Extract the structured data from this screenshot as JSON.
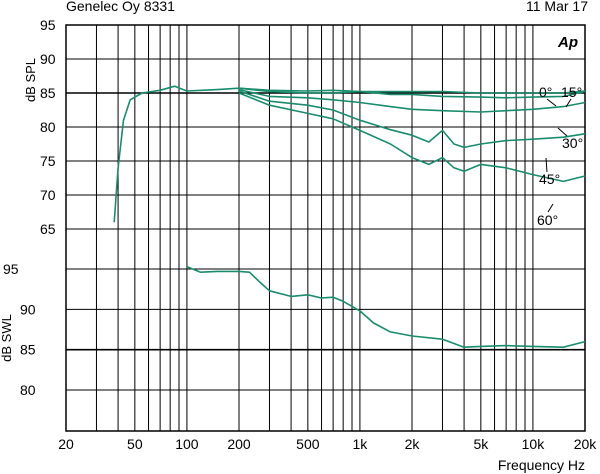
{
  "header": {
    "left": "Genelec Oy 8331",
    "right": "11 Mar 17",
    "logo": "Ap"
  },
  "colors": {
    "curve": "#1a8c6e",
    "grid": "#000000",
    "background": "#ffffff"
  },
  "chart_data": [
    {
      "type": "line",
      "title": "",
      "xlabel": "Frequency Hz",
      "ylabel": "dB SPL",
      "xscale": "log",
      "xlim": [
        20,
        20000
      ],
      "ylim": [
        65,
        95
      ],
      "yticks": [
        95,
        90,
        85,
        80,
        75,
        70,
        65
      ],
      "xticks": [
        20,
        50,
        100,
        200,
        500,
        1000,
        2000,
        5000,
        10000,
        20000
      ],
      "xtick_labels": [
        "20",
        "50",
        "100",
        "200",
        "500",
        "1k",
        "2k",
        "5k",
        "10k",
        "20k"
      ],
      "grid": true,
      "series": [
        {
          "name": "0°",
          "x": [
            38,
            40,
            43,
            47,
            55,
            70,
            85,
            100,
            150,
            200,
            300,
            500,
            700,
            1000,
            1500,
            2000,
            3000,
            5000,
            7000,
            10000,
            15000,
            20000
          ],
          "y": [
            66,
            74,
            81,
            84,
            85,
            85.4,
            86,
            85.3,
            85.5,
            85.7,
            85.4,
            85.3,
            85.4,
            85.2,
            85.2,
            85.2,
            85.2,
            85.0,
            85.0,
            85.0,
            85.0,
            85.3
          ]
        },
        {
          "name": "15°",
          "x": [
            200,
            300,
            500,
            700,
            1000,
            1500,
            2000,
            3000,
            5000,
            7000,
            10000,
            15000,
            20000
          ],
          "y": [
            85.7,
            85.2,
            85.0,
            85.0,
            85.2,
            84.8,
            84.8,
            84.5,
            84.4,
            84.3,
            84.4,
            84.5,
            85.2
          ]
        },
        {
          "name": "30°",
          "x": [
            200,
            300,
            500,
            700,
            1000,
            1500,
            2000,
            3000,
            5000,
            7000,
            10000,
            15000,
            20000
          ],
          "y": [
            85.5,
            84.5,
            84.3,
            84.0,
            83.6,
            83.0,
            82.6,
            82.4,
            82.2,
            82.4,
            82.6,
            83.0,
            83.6
          ]
        },
        {
          "name": "45°",
          "x": [
            200,
            300,
            500,
            700,
            1000,
            1500,
            2000,
            2500,
            3000,
            3500,
            4000,
            5000,
            7000,
            10000,
            15000,
            20000
          ],
          "y": [
            85.3,
            83.8,
            83.2,
            82.5,
            81.0,
            79.6,
            78.8,
            77.8,
            79.5,
            77.5,
            77.0,
            77.5,
            78.0,
            78.2,
            78.5,
            79.0
          ]
        },
        {
          "name": "60°",
          "x": [
            200,
            300,
            500,
            700,
            1000,
            1500,
            2000,
            2500,
            3000,
            3500,
            4000,
            5000,
            7000,
            10000,
            15000,
            20000
          ],
          "y": [
            85.0,
            83.2,
            82.0,
            81.2,
            79.5,
            77.5,
            75.5,
            74.5,
            75.5,
            74.0,
            73.5,
            74.5,
            74.0,
            73.0,
            72.0,
            72.8
          ]
        }
      ]
    },
    {
      "type": "line",
      "title": "",
      "xlabel": "Frequency Hz",
      "ylabel": "dB SWL",
      "xscale": "log",
      "xlim": [
        20,
        20000
      ],
      "ylim": [
        80,
        95
      ],
      "yticks": [
        95,
        90,
        85,
        80
      ],
      "grid": true,
      "series": [
        {
          "x": [
            100,
            120,
            150,
            200,
            230,
            260,
            300,
            400,
            500,
            600,
            700,
            800,
            1000,
            1200,
            1500,
            2000,
            3000,
            4000,
            5000,
            7000,
            10000,
            15000,
            20000
          ],
          "y": [
            95.3,
            94.6,
            94.7,
            94.7,
            94.6,
            93.5,
            92.3,
            91.6,
            91.8,
            91.4,
            91.5,
            91.0,
            89.8,
            88.3,
            87.2,
            86.7,
            86.3,
            85.3,
            85.4,
            85.5,
            85.4,
            85.3,
            86.0
          ]
        }
      ]
    }
  ]
}
